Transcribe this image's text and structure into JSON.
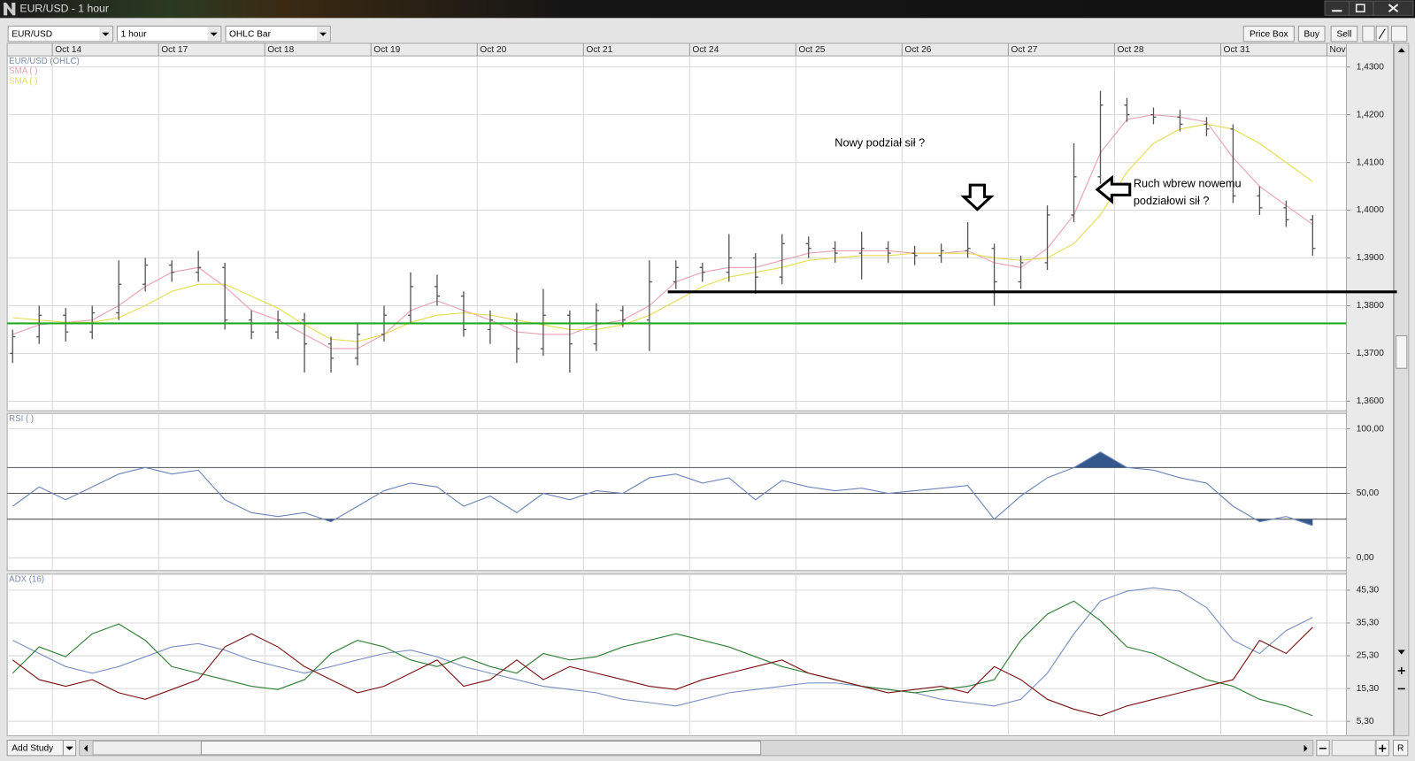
{
  "window": {
    "title": "EUR/USD - 1 hour"
  },
  "toolbar": {
    "symbol": "EUR/USD",
    "interval": "1 hour",
    "style": "OHLC Bar",
    "buttons": [
      "Price Box",
      "Buy",
      "Sell"
    ]
  },
  "footer": {
    "add_study": "Add Study",
    "reset": "R"
  },
  "chart_data": [
    {
      "type": "ohlc",
      "title": "EUR/USD (OHLC)",
      "color": "#555555",
      "x_labels": [
        "Oct 14",
        "Oct 17",
        "Oct 18",
        "Oct 19",
        "Oct 20",
        "Oct 21",
        "Oct 24",
        "Oct 25",
        "Oct 26",
        "Oct 27",
        "Oct 28",
        "Oct 31",
        "Nov"
      ],
      "open": [
        1.37,
        1.3735,
        1.378,
        1.3745,
        1.3785,
        1.3845,
        1.3885,
        1.387,
        1.388,
        1.377,
        1.3745,
        1.377,
        1.372,
        1.369,
        1.374,
        1.378,
        1.384,
        1.382,
        1.375,
        1.377,
        1.371,
        1.378,
        1.372,
        1.379,
        1.377,
        1.385,
        1.388,
        1.387,
        1.39,
        1.386,
        1.393,
        1.392,
        1.391,
        1.392,
        1.391,
        1.3905,
        1.3915,
        1.392,
        1.385,
        1.389,
        1.399,
        1.407,
        1.422,
        1.42,
        1.4195,
        1.418,
        1.417,
        1.403,
        1.4005,
        1.398
      ],
      "high": [
        1.375,
        1.38,
        1.3795,
        1.38,
        1.3895,
        1.39,
        1.3895,
        1.3915,
        1.389,
        1.379,
        1.379,
        1.3785,
        1.3735,
        1.3765,
        1.38,
        1.387,
        1.3865,
        1.383,
        1.379,
        1.3785,
        1.3835,
        1.379,
        1.3805,
        1.38,
        1.3895,
        1.3895,
        1.389,
        1.395,
        1.391,
        1.395,
        1.3945,
        1.3935,
        1.3955,
        1.3935,
        1.3925,
        1.393,
        1.3975,
        1.393,
        1.3905,
        1.401,
        1.414,
        1.425,
        1.4235,
        1.4215,
        1.421,
        1.4195,
        1.418,
        1.405,
        1.402,
        1.399
      ],
      "low": [
        1.368,
        1.372,
        1.3725,
        1.373,
        1.377,
        1.383,
        1.385,
        1.385,
        1.375,
        1.373,
        1.373,
        1.366,
        1.366,
        1.3675,
        1.3725,
        1.3765,
        1.38,
        1.3735,
        1.372,
        1.368,
        1.3695,
        1.366,
        1.3705,
        1.3755,
        1.3705,
        1.3835,
        1.385,
        1.385,
        1.3825,
        1.3845,
        1.39,
        1.389,
        1.3855,
        1.389,
        1.3885,
        1.389,
        1.39,
        1.38,
        1.3835,
        1.3875,
        1.3975,
        1.4055,
        1.4185,
        1.418,
        1.4165,
        1.4155,
        1.4015,
        1.399,
        1.3965,
        1.3905
      ],
      "close": [
        1.3735,
        1.378,
        1.3745,
        1.3785,
        1.3845,
        1.3885,
        1.387,
        1.388,
        1.377,
        1.3745,
        1.377,
        1.372,
        1.369,
        1.374,
        1.378,
        1.384,
        1.382,
        1.375,
        1.377,
        1.371,
        1.378,
        1.372,
        1.379,
        1.377,
        1.385,
        1.388,
        1.387,
        1.39,
        1.386,
        1.393,
        1.392,
        1.391,
        1.392,
        1.391,
        1.3905,
        1.3915,
        1.392,
        1.385,
        1.389,
        1.399,
        1.407,
        1.422,
        1.42,
        1.4195,
        1.418,
        1.417,
        1.403,
        1.4005,
        1.398,
        1.392
      ],
      "series": [
        {
          "name": "SMA (  )",
          "color": "#e8a0b0",
          "values": [
            1.374,
            1.376,
            1.3765,
            1.377,
            1.38,
            1.384,
            1.387,
            1.388,
            1.384,
            1.379,
            1.377,
            1.374,
            1.371,
            1.371,
            1.374,
            1.379,
            1.381,
            1.379,
            1.377,
            1.3745,
            1.374,
            1.374,
            1.376,
            1.377,
            1.38,
            1.385,
            1.387,
            1.388,
            1.388,
            1.3895,
            1.391,
            1.3915,
            1.3915,
            1.3915,
            1.391,
            1.391,
            1.3915,
            1.389,
            1.388,
            1.392,
            1.399,
            1.412,
            1.419,
            1.42,
            1.4195,
            1.4185,
            1.411,
            1.405,
            1.401,
            1.397
          ]
        },
        {
          "name": "SMA (  )",
          "color": "#e6dc50",
          "values": [
            1.3775,
            1.377,
            1.3765,
            1.3765,
            1.3775,
            1.38,
            1.383,
            1.3845,
            1.3845,
            1.382,
            1.3795,
            1.376,
            1.373,
            1.3725,
            1.374,
            1.3765,
            1.378,
            1.3785,
            1.378,
            1.377,
            1.376,
            1.375,
            1.375,
            1.376,
            1.378,
            1.381,
            1.384,
            1.386,
            1.387,
            1.388,
            1.3895,
            1.39,
            1.3905,
            1.3905,
            1.391,
            1.391,
            1.391,
            1.39,
            1.3895,
            1.39,
            1.393,
            1.399,
            1.408,
            1.414,
            1.417,
            1.418,
            1.417,
            1.414,
            1.41,
            1.406
          ]
        }
      ],
      "levels": [
        {
          "value": 1.3763,
          "color": "#22aa22"
        },
        {
          "value": 1.3829,
          "color": "#000000"
        }
      ],
      "annotations": [
        {
          "lines": [
            "Nowy podział sił ?"
          ]
        },
        {
          "lines": [
            "Ruch wbrew nowemu",
            "podziałowi sił ?"
          ]
        }
      ],
      "ylim": [
        1.358,
        1.4323
      ],
      "yticks": [
        {
          "value": 1.36,
          "label": "1,3600"
        },
        {
          "value": 1.37,
          "label": "1,3700"
        },
        {
          "value": 1.38,
          "label": "1,3800"
        },
        {
          "value": 1.39,
          "label": "1,3900"
        },
        {
          "value": 1.4,
          "label": "1,4000"
        },
        {
          "value": 1.41,
          "label": "1,4100"
        },
        {
          "value": 1.42,
          "label": "1,4200"
        },
        {
          "value": 1.43,
          "label": "1,4300"
        }
      ],
      "grid": true
    },
    {
      "type": "line",
      "title": "RSI (  )",
      "fill_color": "#34588c",
      "series": [
        {
          "color": "#6a86b8",
          "values": [
            40,
            55,
            45,
            55,
            65,
            70,
            65,
            68,
            45,
            35,
            32,
            35,
            28,
            40,
            52,
            58,
            55,
            40,
            48,
            35,
            50,
            45,
            52,
            50,
            62,
            65,
            58,
            62,
            45,
            60,
            55,
            52,
            54,
            50,
            52,
            54,
            56,
            30,
            48,
            62,
            70,
            82,
            70,
            68,
            62,
            58,
            40,
            28,
            32,
            25
          ]
        }
      ],
      "levels": [
        70,
        50,
        30
      ],
      "ylim": [
        -9.8,
        111.9
      ],
      "yticks": [
        {
          "value": 0,
          "label": "0,00"
        },
        {
          "value": 50,
          "label": "50,00"
        },
        {
          "value": 100,
          "label": "100,00"
        }
      ],
      "grid": true
    },
    {
      "type": "line",
      "title": "ADX (16)",
      "series": [
        {
          "color": "#7890c0",
          "values": [
            30,
            26,
            22,
            20,
            22,
            25,
            28,
            29,
            27,
            24,
            22,
            20,
            22,
            24,
            26,
            27,
            25,
            22,
            20,
            18,
            16,
            15,
            14,
            12,
            11,
            10,
            12,
            14,
            15,
            16,
            17,
            17,
            16,
            15,
            14,
            12,
            11,
            10,
            12,
            20,
            32,
            42,
            45,
            46,
            45,
            40,
            30,
            26,
            33,
            37
          ]
        },
        {
          "color": "#2e7d32",
          "values": [
            20,
            28,
            25,
            32,
            35,
            30,
            22,
            20,
            18,
            16,
            15,
            18,
            26,
            30,
            28,
            24,
            22,
            25,
            22,
            20,
            26,
            24,
            25,
            28,
            30,
            32,
            30,
            28,
            25,
            22,
            20,
            18,
            16,
            15,
            14,
            15,
            16,
            18,
            30,
            38,
            42,
            36,
            28,
            26,
            22,
            18,
            16,
            12,
            10,
            7
          ]
        },
        {
          "color": "#7a1010",
          "values": [
            24,
            18,
            16,
            18,
            14,
            12,
            15,
            18,
            28,
            32,
            28,
            22,
            18,
            14,
            16,
            20,
            24,
            16,
            18,
            24,
            18,
            22,
            20,
            18,
            16,
            15,
            18,
            20,
            22,
            24,
            20,
            18,
            16,
            14,
            15,
            16,
            14,
            22,
            18,
            12,
            9,
            7,
            10,
            12,
            14,
            16,
            18,
            30,
            26,
            34
          ]
        }
      ],
      "ylim": [
        0.9,
        50.2
      ],
      "yticks": [
        {
          "value": 5.3,
          "label": "5,30"
        },
        {
          "value": 15.3,
          "label": "15,30"
        },
        {
          "value": 25.3,
          "label": "25,30"
        },
        {
          "value": 35.3,
          "label": "35,30"
        },
        {
          "value": 45.3,
          "label": "45,30"
        }
      ],
      "grid": true
    }
  ]
}
